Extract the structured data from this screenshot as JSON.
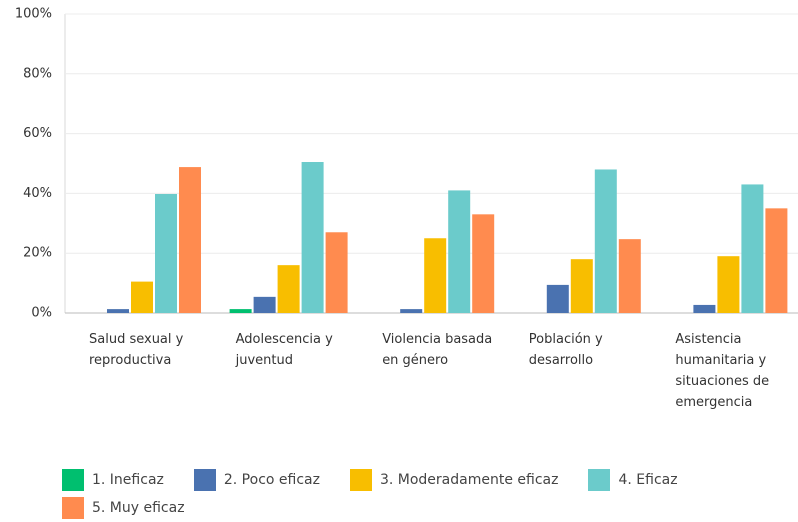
{
  "chart_data": {
    "type": "bar",
    "categories": [
      "Salud sexual y reproductiva",
      "Adolescencia y juventud",
      "Violencia basada en género",
      "Población y desarrollo",
      "Asistencia humanitaria y situaciones de emergencia"
    ],
    "series": [
      {
        "name": "1. Ineficaz",
        "color": "#00bf6f",
        "values": [
          0,
          1.3,
          0,
          0,
          0
        ]
      },
      {
        "name": "2. Poco eficaz",
        "color": "#4a72b0",
        "values": [
          1.3,
          5.4,
          1.3,
          9.4,
          2.7
        ]
      },
      {
        "name": "3. Moderadamente eficaz",
        "color": "#f8be00",
        "values": [
          10.5,
          16,
          25,
          18,
          19
        ]
      },
      {
        "name": "4. Eficaz",
        "color": "#6bcbcb",
        "values": [
          39.8,
          50.5,
          41,
          48,
          43
        ]
      },
      {
        "name": "5. Muy eficaz",
        "color": "#ff8b4f",
        "values": [
          48.8,
          27,
          33,
          24.7,
          35
        ]
      }
    ],
    "ylim": [
      0,
      100
    ],
    "yticks": [
      {
        "value": 0,
        "label": "0%"
      },
      {
        "value": 20,
        "label": "20%"
      },
      {
        "value": 40,
        "label": "40%"
      },
      {
        "value": 60,
        "label": "60%"
      },
      {
        "value": 80,
        "label": "80%"
      },
      {
        "value": 100,
        "label": "100%"
      }
    ],
    "grid": true
  }
}
